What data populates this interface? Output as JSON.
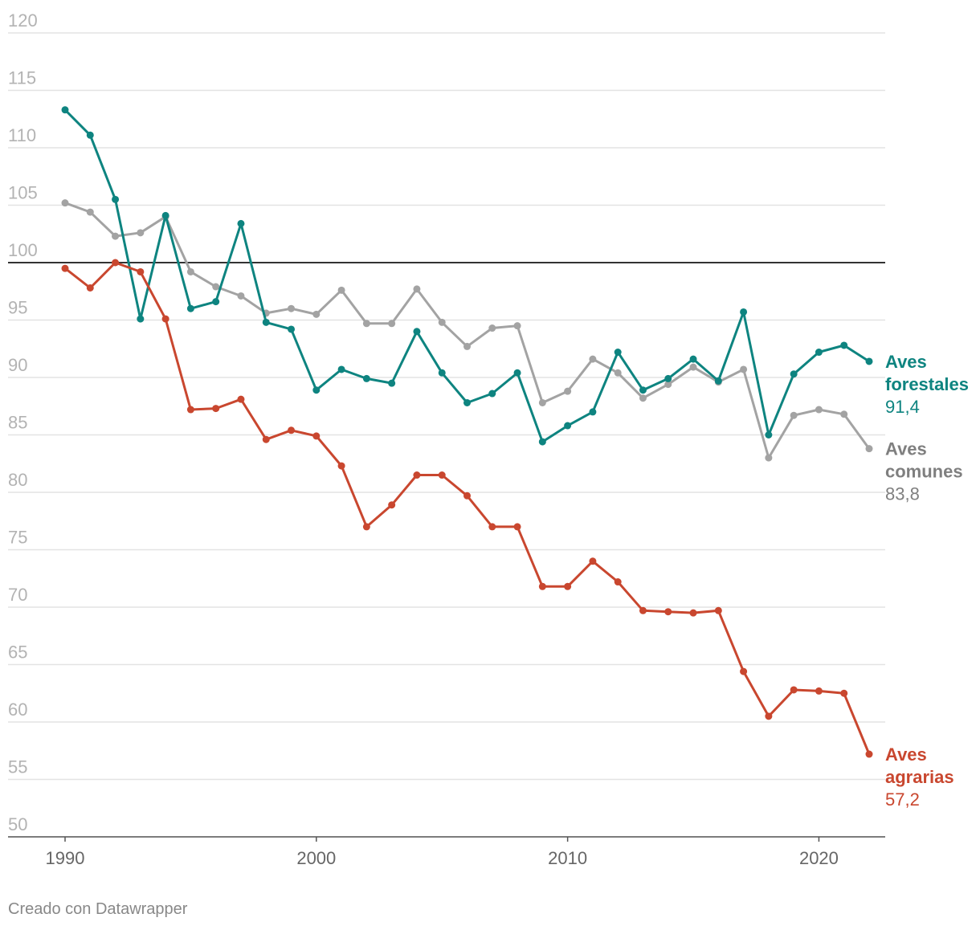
{
  "chart_data": {
    "type": "line",
    "x": [
      1990,
      1991,
      1992,
      1993,
      1994,
      1995,
      1996,
      1997,
      1998,
      1999,
      2000,
      2001,
      2002,
      2003,
      2004,
      2005,
      2006,
      2007,
      2008,
      2009,
      2010,
      2011,
      2012,
      2013,
      2014,
      2015,
      2016,
      2017,
      2018,
      2019,
      2020,
      2021,
      2022
    ],
    "ylim": [
      50,
      120
    ],
    "yticks": [
      50,
      55,
      60,
      65,
      70,
      75,
      80,
      85,
      90,
      95,
      100,
      105,
      110,
      115,
      120
    ],
    "ytick_labels": [
      "50",
      "55",
      "60",
      "65",
      "70",
      "75",
      "80",
      "85",
      "90",
      "95",
      "100",
      "105",
      "110",
      "115",
      "120"
    ],
    "xticks": [
      1990,
      2000,
      2010,
      2020
    ],
    "xtick_labels": [
      "1990",
      "2000",
      "2010",
      "2020"
    ],
    "reference_line": 100,
    "grid": true,
    "series": [
      {
        "key": "comunes",
        "name_line1": "Aves",
        "name_line2": "comunes",
        "last_label": "83,8",
        "color": "#a3a3a3",
        "label_color": "#7f7f7f",
        "values": [
          105.2,
          104.4,
          102.3,
          102.6,
          104.0,
          99.2,
          97.9,
          97.1,
          95.6,
          96.0,
          95.5,
          97.6,
          94.7,
          94.7,
          97.7,
          94.8,
          92.7,
          94.3,
          94.5,
          87.8,
          88.8,
          91.6,
          90.4,
          88.2,
          89.4,
          90.9,
          89.6,
          90.7,
          83.0,
          86.7,
          87.2,
          86.8,
          83.8
        ]
      },
      {
        "key": "forestales",
        "name_line1": "Aves",
        "name_line2": "forestales",
        "last_label": "91,4",
        "color": "#0e8480",
        "label_color": "#0e8480",
        "values": [
          113.3,
          111.1,
          105.5,
          95.1,
          104.1,
          96.0,
          96.6,
          103.4,
          94.8,
          94.2,
          88.9,
          90.7,
          89.9,
          89.5,
          94.0,
          90.4,
          87.8,
          88.6,
          90.4,
          84.4,
          85.8,
          87.0,
          92.2,
          88.9,
          89.9,
          91.6,
          89.7,
          95.7,
          85.0,
          90.3,
          92.2,
          92.8,
          91.4
        ]
      },
      {
        "key": "agrarias",
        "name_line1": "Aves",
        "name_line2": "agrarias",
        "last_label": "57,2",
        "color": "#c9472f",
        "label_color": "#c9472f",
        "values": [
          99.5,
          97.8,
          100.0,
          99.2,
          95.1,
          87.2,
          87.3,
          88.1,
          84.6,
          85.4,
          84.9,
          82.3,
          77.0,
          78.9,
          81.5,
          81.5,
          79.7,
          77.0,
          77.0,
          71.8,
          71.8,
          74.0,
          72.2,
          69.7,
          69.6,
          69.5,
          69.7,
          64.4,
          60.5,
          62.8,
          62.7,
          62.5,
          57.2
        ]
      }
    ]
  },
  "footer": {
    "credit": "Creado con Datawrapper"
  }
}
